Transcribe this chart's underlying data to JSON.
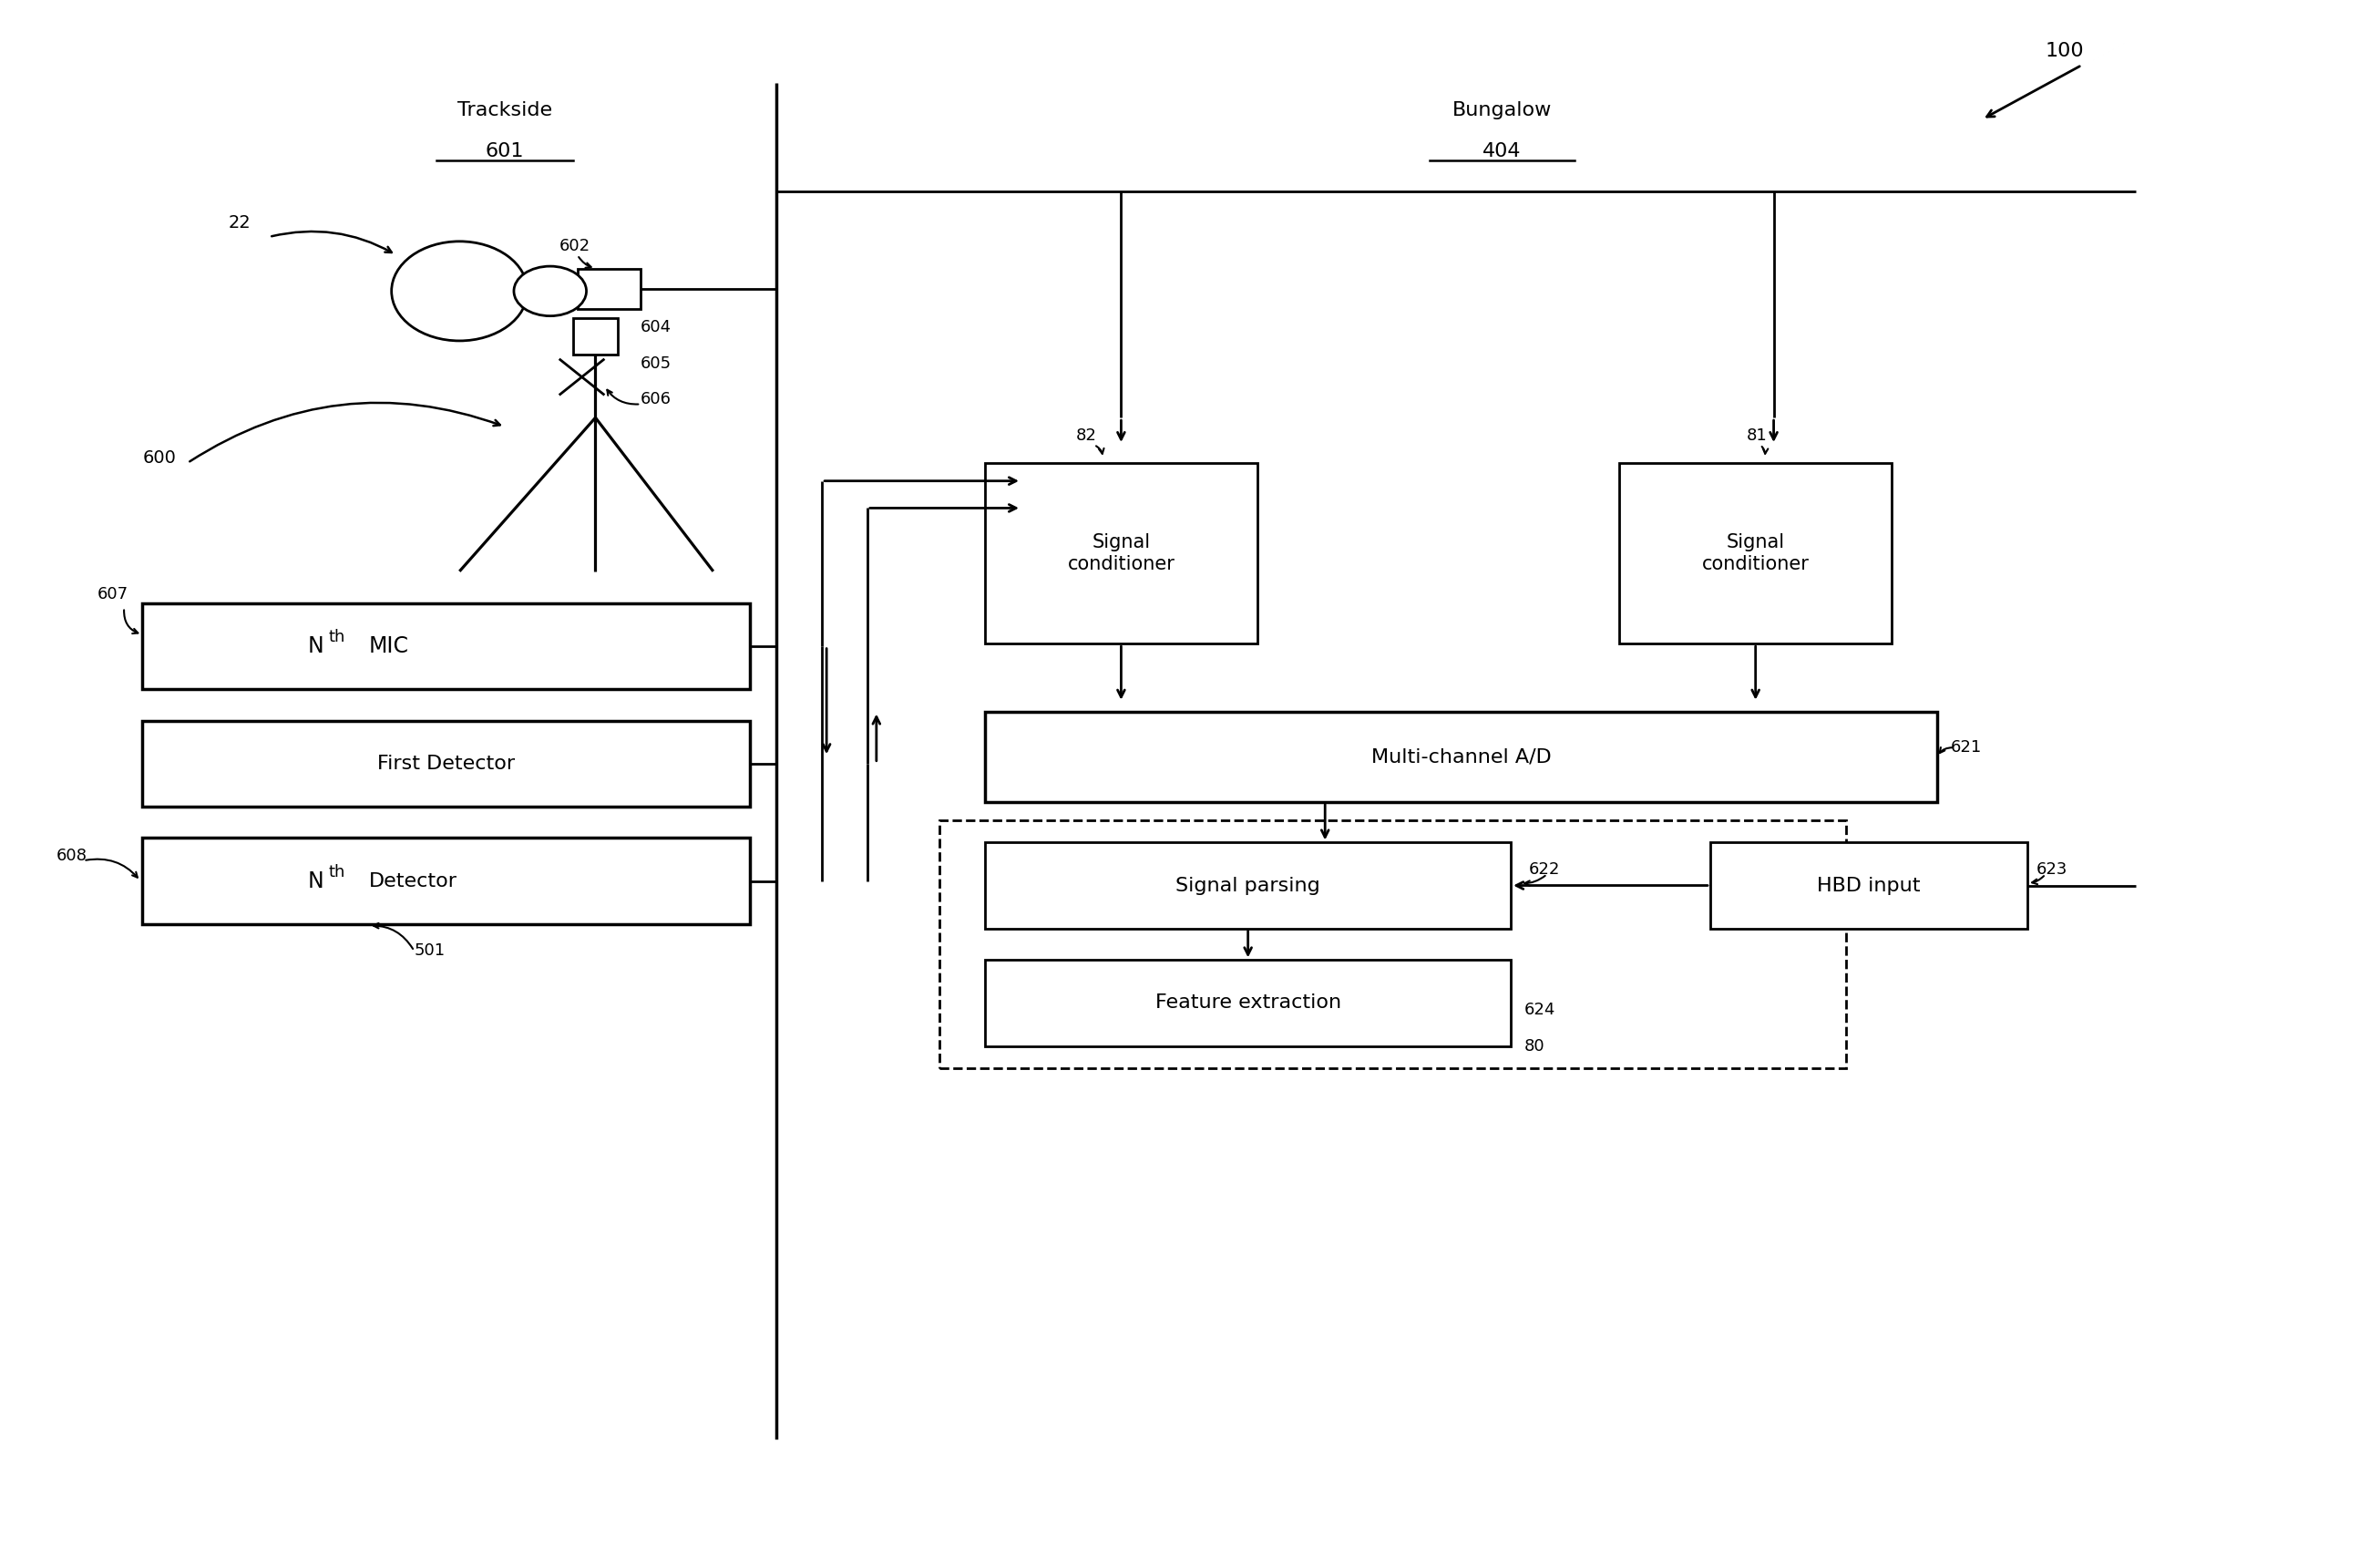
{
  "bg_color": "#ffffff",
  "line_color": "#000000",
  "fig_width": 26.12,
  "fig_height": 17.05,
  "labels": {
    "trackside": "Trackside",
    "trackside_num": "601",
    "bungalow": "Bungalow",
    "bungalow_num": "404",
    "system_num": "100",
    "ref_22": "22",
    "ref_600": "600",
    "ref_602": "602",
    "ref_604": "604",
    "ref_605": "605",
    "ref_606": "606",
    "ref_607": "607",
    "ref_608": "608",
    "ref_501": "501",
    "ref_82": "82",
    "ref_81": "81",
    "ref_621": "621",
    "ref_622": "622",
    "ref_623": "623",
    "ref_624": "624",
    "ref_80": "80",
    "box_first_det": "First Detector",
    "box_sig_cond": "Signal\nconditioner",
    "box_multi_ad": "Multi-channel A/D",
    "box_sig_parse": "Signal parsing",
    "box_feat_ext": "Feature extraction",
    "box_hbd": "HBD input"
  }
}
